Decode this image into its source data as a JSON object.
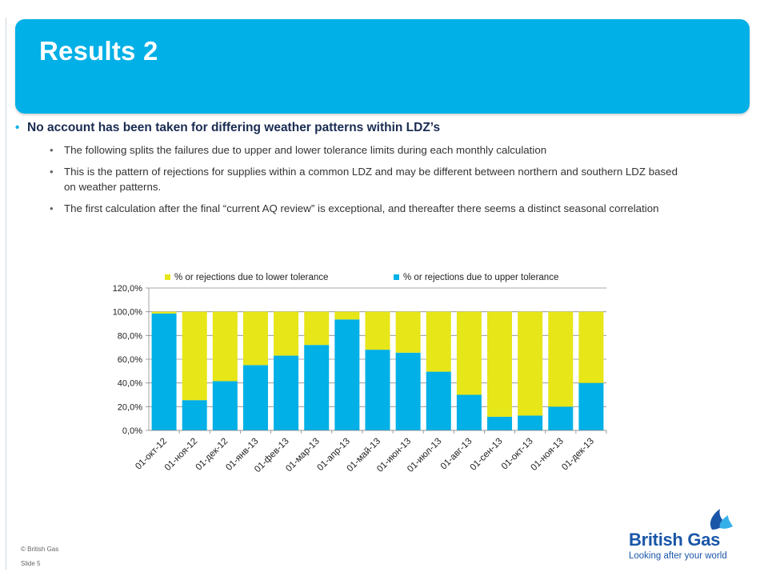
{
  "slide": {
    "title": "Results 2",
    "bullets": {
      "main": "No account has been taken for differing weather patterns within LDZ’s",
      "sub": [
        "The following splits the failures due to upper and lower tolerance limits during each monthly calculation",
        "This is the pattern of rejections for supplies within a common LDZ  and may be different between northern and southern LDZ based on weather patterns.",
        "The first calculation after the final “current AQ review” is exceptional, and thereafter there seems a distinct seasonal correlation"
      ]
    },
    "footer": {
      "copyright": "© British Gas",
      "slide_label": "Slide 5"
    },
    "logo": {
      "name": "British Gas",
      "tagline": "Looking after your world"
    }
  },
  "colors": {
    "header": "#00b0e6",
    "lower": "#e6e619",
    "upper": "#00b0e6"
  },
  "chart_data": {
    "type": "bar",
    "stacked": true,
    "categories": [
      "01-окт-12",
      "01-ноя-12",
      "01-дек-12",
      "01-янв-13",
      "01-фев-13",
      "01-мар-13",
      "01-апр-13",
      "01-май-13",
      "01-июн-13",
      "01-июл-13",
      "01-авг-13",
      "01-сен-13",
      "01-окт-13",
      "01-ноя-13",
      "01-дек-13"
    ],
    "series": [
      {
        "name": "% or rejections due to upper tolerance",
        "values": [
          98.5,
          25.5,
          41.5,
          55,
          63,
          72,
          93.5,
          68,
          65.5,
          49.5,
          30,
          11.5,
          12.5,
          20,
          40
        ]
      },
      {
        "name": "% or rejections due to lower tolerance",
        "values": [
          1.5,
          74.5,
          58.5,
          45,
          37,
          28,
          6.5,
          32,
          34.5,
          50.5,
          70,
          88.5,
          87.5,
          80,
          60
        ]
      }
    ],
    "ylim": [
      0,
      120
    ],
    "yticks": [
      "0,0%",
      "20,0%",
      "40,0%",
      "60,0%",
      "80,0%",
      "100,0%",
      "120,0%"
    ],
    "legend_order": [
      "% or rejections due to lower tolerance",
      "% or rejections due to upper tolerance"
    ],
    "legend_position": "top",
    "grid": true
  }
}
